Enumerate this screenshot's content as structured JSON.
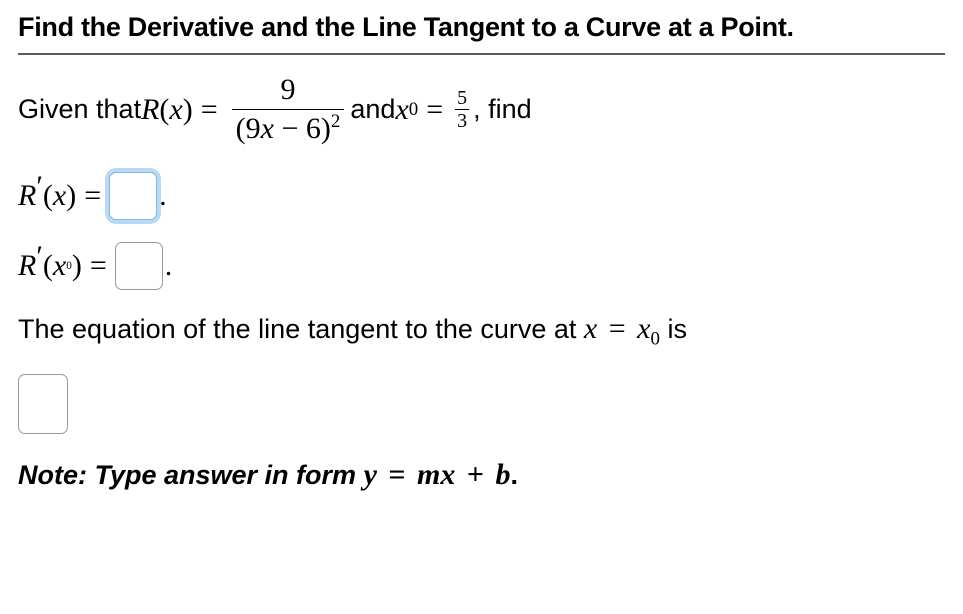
{
  "title": "Find the Derivative and the Line Tangent to a Curve at a Point.",
  "given": {
    "prefix": "Given that ",
    "func": "R",
    "var": "x",
    "eq": " = ",
    "frac_num": "9",
    "frac_den_prefix": "(9",
    "frac_den_var": "x",
    "frac_den_minus": " − 6)",
    "frac_den_exp": "2",
    "and_text": " and ",
    "x0_var": "x",
    "x0_sub": "0",
    "x0_eq": " = ",
    "x0_num": "5",
    "x0_den": "3",
    "find_text": ", find"
  },
  "deriv1": {
    "R": "R",
    "prime": "′",
    "open": "(",
    "x": "x",
    "close": ")",
    "eq": " = ",
    "dot": "."
  },
  "deriv2": {
    "R": "R",
    "prime": "′",
    "open": "(",
    "x": "x",
    "sub": "0",
    "close": ")",
    "eq": " = ",
    "dot": "."
  },
  "tangent": {
    "text1": "The equation of the line tangent to the curve at ",
    "x": "x",
    "eq": " = ",
    "x2": "x",
    "sub": "0",
    "text2": " is"
  },
  "note": {
    "prefix": "Note: Type answer in form ",
    "y": "y",
    "eq": " = ",
    "m": "m",
    "x": "x",
    "plus": " + ",
    "b": "b",
    "dot": "."
  },
  "style": {
    "title_fontsize": 27,
    "body_fontsize": 27,
    "math_fontsize": 30,
    "border_color": "#999999",
    "focus_border_color": "#7fb8e8",
    "focus_glow": "rgba(127,184,232,0.55)",
    "hr_color": "#5a5a5a",
    "text_color": "#000000",
    "background": "#ffffff"
  }
}
